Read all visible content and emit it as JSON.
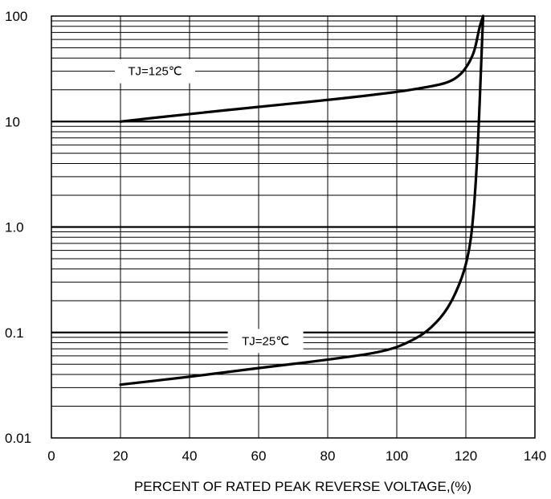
{
  "chart_data": {
    "type": "line",
    "title": "",
    "xlabel": "PERCENT OF RATED PEAK REVERSE VOLTAGE,(%)",
    "ylabel": "",
    "xlim": [
      0,
      140
    ],
    "ylim": [
      0.01,
      100
    ],
    "yscale": "log",
    "grid": true,
    "x_ticks": [
      "0",
      "20",
      "40",
      "60",
      "80",
      "100",
      "120",
      "140"
    ],
    "y_ticks": [
      "100",
      "10",
      "1.0",
      "0.1",
      "0.01"
    ],
    "series": [
      {
        "label": "TJ=125℃",
        "color": "#000000",
        "points": [
          [
            20,
            10
          ],
          [
            40,
            11.8
          ],
          [
            60,
            13.8
          ],
          [
            80,
            16
          ],
          [
            100,
            19
          ],
          [
            110,
            21.5
          ],
          [
            115,
            23.5
          ],
          [
            118,
            27
          ],
          [
            120,
            32
          ],
          [
            122,
            42
          ],
          [
            123,
            55
          ],
          [
            124,
            80
          ],
          [
            125,
            100
          ]
        ]
      },
      {
        "label": "TJ=25℃",
        "color": "#000000",
        "points": [
          [
            20,
            0.032
          ],
          [
            40,
            0.038
          ],
          [
            60,
            0.046
          ],
          [
            80,
            0.055
          ],
          [
            97,
            0.066
          ],
          [
            105,
            0.085
          ],
          [
            110,
            0.11
          ],
          [
            115,
            0.17
          ],
          [
            119,
            0.33
          ],
          [
            121,
            0.6
          ],
          [
            122,
            1.1
          ],
          [
            123,
            3
          ],
          [
            123.8,
            10
          ],
          [
            124.5,
            40
          ],
          [
            125,
            100
          ]
        ]
      }
    ]
  }
}
